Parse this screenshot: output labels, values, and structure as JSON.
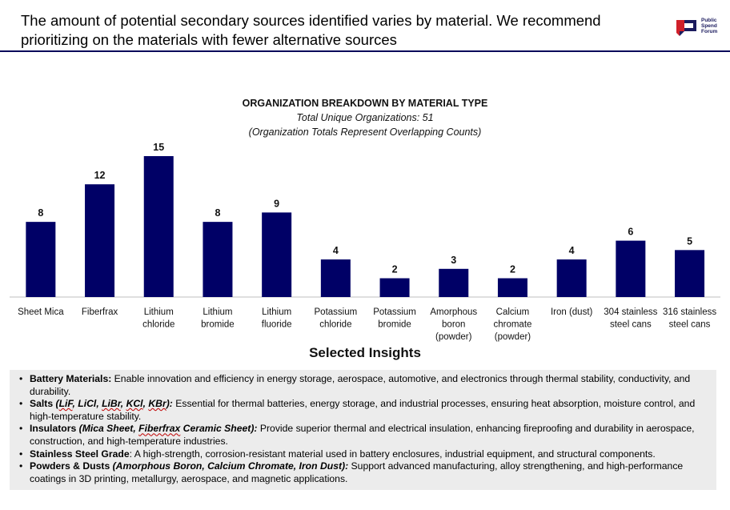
{
  "header": {
    "headline": "The amount of potential secondary sources identified varies by material. We recommend prioritizing on the materials with fewer alternative sources",
    "logo": {
      "line1": "Public",
      "line2": "Spend",
      "line3": "Forum",
      "icon": "psf-logo-icon"
    }
  },
  "colors": {
    "bar": "#000066",
    "rule": "#0a0a5a",
    "insights_bg": "#ececec"
  },
  "chart_data": {
    "type": "bar",
    "title": "ORGANIZATION BREAKDOWN BY MATERIAL TYPE",
    "subtitle": "Total Unique Organizations: 51",
    "subtitle2": "(Organization Totals Represent Overlapping Counts)",
    "categories": [
      [
        "Sheet Mica"
      ],
      [
        "Fiberfrax"
      ],
      [
        "Lithium",
        "chloride"
      ],
      [
        "Lithium",
        "bromide"
      ],
      [
        "Lithium",
        "fluoride"
      ],
      [
        "Potassium",
        "chloride"
      ],
      [
        "Potassium",
        "bromide"
      ],
      [
        "Amorphous",
        "boron",
        "(powder)"
      ],
      [
        "Calcium",
        "chromate",
        "(powder)"
      ],
      [
        "Iron (dust)"
      ],
      [
        "304 stainless",
        "steel cans"
      ],
      [
        "316 stainless",
        "steel cans"
      ]
    ],
    "values": [
      8,
      12,
      15,
      8,
      9,
      4,
      2,
      3,
      2,
      4,
      6,
      5
    ],
    "ylim": [
      0,
      15
    ],
    "data_labels": true,
    "grid": false
  },
  "insights": {
    "title": "Selected Insights",
    "items": [
      {
        "head": "Battery Materials:",
        "text": " Enable innovation and efficiency in energy storage, aerospace, automotive, and electronics through thermal stability, conductivity, and durability."
      },
      {
        "head": "Salts",
        "head_italic": "(LiF, LiCl, LiBr, KCl, KBr):",
        "text": " Essential for thermal batteries, energy storage, and industrial processes, ensuring heat absorption, moisture control, and high-temperature stability."
      },
      {
        "head": "Insulators",
        "head_italic": "(Mica Sheet, Fiberfrax Ceramic Sheet):",
        "text": " Provide superior thermal and electrical insulation, enhancing fireproofing and durability in aerospace, construction, and high-temperature industries."
      },
      {
        "head": "Stainless Steel Grade",
        "text": ": A high-strength, corrosion-resistant material used in battery enclosures, industrial equipment, and structural components."
      },
      {
        "head": "Powders & Dusts",
        "head_italic": "(Amorphous Boron, Calcium Chromate, Iron Dust):",
        "text": " Support advanced manufacturing, alloy strengthening, and high-performance coatings in 3D printing, metallurgy, aerospace, and magnetic applications."
      }
    ]
  }
}
